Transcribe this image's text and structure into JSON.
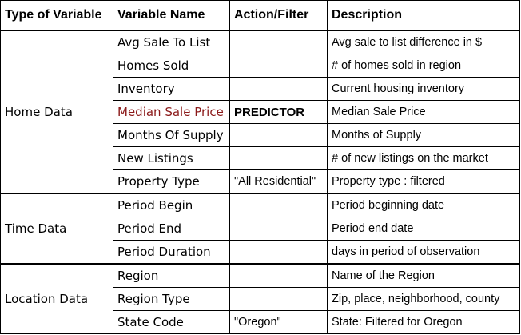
{
  "headers": [
    "Type of Variable",
    "Variable Name",
    "Action/Filter",
    "Description"
  ],
  "colors": {
    "highlight_text": "#8b1a1a",
    "border": "#000000"
  },
  "groups": [
    {
      "type": "Home Data",
      "rows": [
        {
          "name": "Avg Sale To List",
          "action": "",
          "desc": "Avg sale to list difference in $"
        },
        {
          "name": "Homes Sold",
          "action": "",
          "desc": "# of homes sold in region"
        },
        {
          "name": "Inventory",
          "action": "",
          "desc": "Current housing inventory"
        },
        {
          "name": "Median Sale Price",
          "action": "PREDICTOR",
          "desc": "Median Sale Price"
        },
        {
          "name": "Months Of Supply",
          "action": "",
          "desc": "Months of Supply"
        },
        {
          "name": "New Listings",
          "action": "",
          "desc": "# of new listings on the market"
        },
        {
          "name": "Property Type",
          "action": "\"All Residential\"",
          "desc": "Property type : filtered"
        }
      ]
    },
    {
      "type": "Time Data",
      "rows": [
        {
          "name": "Period Begin",
          "action": "",
          "desc": "Period beginning date"
        },
        {
          "name": "Period End",
          "action": "",
          "desc": "Period end date"
        },
        {
          "name": "Period Duration",
          "action": "",
          "desc": "days in period of observation"
        }
      ]
    },
    {
      "type": "Location Data",
      "rows": [
        {
          "name": "Region",
          "action": "",
          "desc": "Name of the Region"
        },
        {
          "name": "Region Type",
          "action": "",
          "desc": "Zip, place, neighborhood, county"
        },
        {
          "name": "State Code",
          "action": "\"Oregon\"",
          "desc": "State: Filtered for Oregon"
        }
      ]
    }
  ]
}
